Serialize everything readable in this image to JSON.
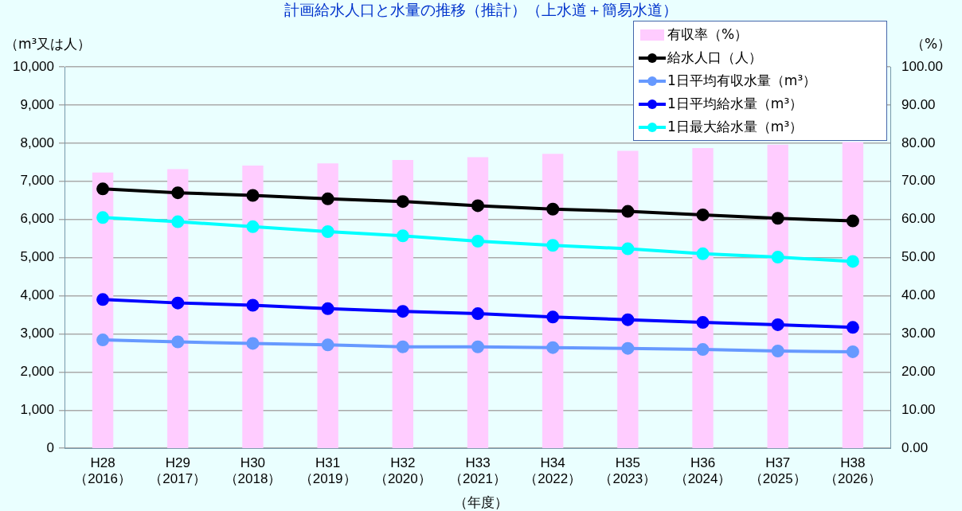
{
  "chart_data": {
    "type": "line",
    "title": "計画給水人口と水量の推移（推計）（上水道＋簡易水道）",
    "xlabel": "（年度）",
    "ylabel": "（m³又は人）",
    "y2label": "（%）",
    "categories": [
      "H28\n（2016）",
      "H29\n（2017）",
      "H30\n（2018）",
      "H31\n（2019）",
      "H32\n（2020）",
      "H33\n（2021）",
      "H34\n（2022）",
      "H35\n（2023）",
      "H36\n（2024）",
      "H37\n（2025）",
      "H38\n（2026）"
    ],
    "series": [
      {
        "name": "有収率（%）",
        "type": "bar",
        "axis": "y2",
        "color": "#ffccff",
        "values": [
          72.3,
          73.2,
          74.1,
          74.7,
          75.6,
          76.3,
          77.2,
          78.0,
          78.7,
          79.6,
          80.3
        ]
      },
      {
        "name": "給水人口（人）",
        "color": "#000000",
        "values": [
          6800,
          6700,
          6630,
          6540,
          6470,
          6360,
          6270,
          6210,
          6120,
          6030,
          5960
        ]
      },
      {
        "name": "1日平均有収水量（m³）",
        "color": "#6699ff",
        "values": [
          2840,
          2790,
          2750,
          2710,
          2660,
          2660,
          2640,
          2620,
          2590,
          2550,
          2530
        ]
      },
      {
        "name": "1日平均給水量（m³）",
        "color": "#0000ff",
        "values": [
          3900,
          3810,
          3750,
          3660,
          3590,
          3530,
          3440,
          3370,
          3300,
          3240,
          3170
        ]
      },
      {
        "name": "1日最大給水量（m³）",
        "color": "#00ffff",
        "values": [
          6050,
          5940,
          5810,
          5680,
          5570,
          5430,
          5320,
          5230,
          5100,
          5010,
          4900
        ]
      }
    ],
    "ylim": [
      0,
      10000
    ],
    "yticks": [
      0,
      {
        "value": 1000,
        "label": "1,000"
      },
      {
        "value": 2000,
        "label": "2,000"
      },
      {
        "value": 3000,
        "label": "3,000"
      },
      {
        "value": 4000,
        "label": "4,000"
      },
      {
        "value": 5000,
        "label": "5,000"
      },
      {
        "value": 6000,
        "label": "6,000"
      },
      {
        "value": 7000,
        "label": "7,000"
      },
      {
        "value": 8000,
        "label": "8,000"
      },
      {
        "value": 9000,
        "label": "9,000"
      },
      {
        "value": 10000,
        "label": "10,000"
      }
    ],
    "y2lim": [
      0,
      100
    ],
    "y2ticks": [
      {
        "value": 0,
        "label": "0.00"
      },
      {
        "value": 10,
        "label": "10.00"
      },
      {
        "value": 20,
        "label": "20.00"
      },
      {
        "value": 30,
        "label": "30.00"
      },
      {
        "value": 40,
        "label": "40.00"
      },
      {
        "value": 50,
        "label": "50.00"
      },
      {
        "value": 60,
        "label": "60.00"
      },
      {
        "value": 70,
        "label": "70.00"
      },
      {
        "value": 80,
        "label": "80.00"
      },
      {
        "value": 90,
        "label": "90.00"
      },
      {
        "value": 100,
        "label": "100.00"
      }
    ],
    "grid": "y",
    "legend": "top right",
    "marker": "circle"
  }
}
